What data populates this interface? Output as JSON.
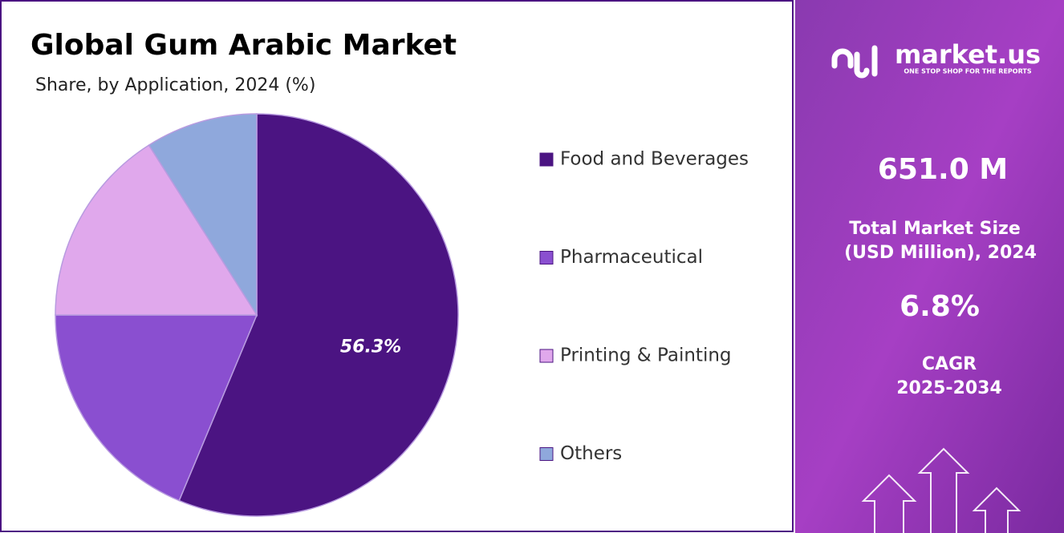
{
  "chart_data": {
    "type": "pie",
    "title": "Global Gum Arabic Market",
    "subtitle": "Share, by Application, 2024 (%)",
    "categories": [
      "Food and Beverages",
      "Pharmaceutical",
      "Printing & Painting",
      "Others"
    ],
    "values": [
      56.3,
      18.7,
      16.0,
      9.0
    ],
    "value_labels": [
      "56.3%",
      null,
      null,
      null
    ],
    "colors": [
      "#4b1482",
      "#8a4fd0",
      "#e0a8ec",
      "#8fa8dc"
    ],
    "legend": "right"
  },
  "info": {
    "brand": "market.us",
    "tagline": "ONE STOP SHOP FOR THE REPORTS",
    "market_size": "651.0 M",
    "market_size_label_1": "Total Market Size",
    "market_size_label_2": "(USD Million), 2024",
    "cagr": "6.8%",
    "cagr_label_1": "CAGR",
    "cagr_label_2": "2025-2034"
  }
}
